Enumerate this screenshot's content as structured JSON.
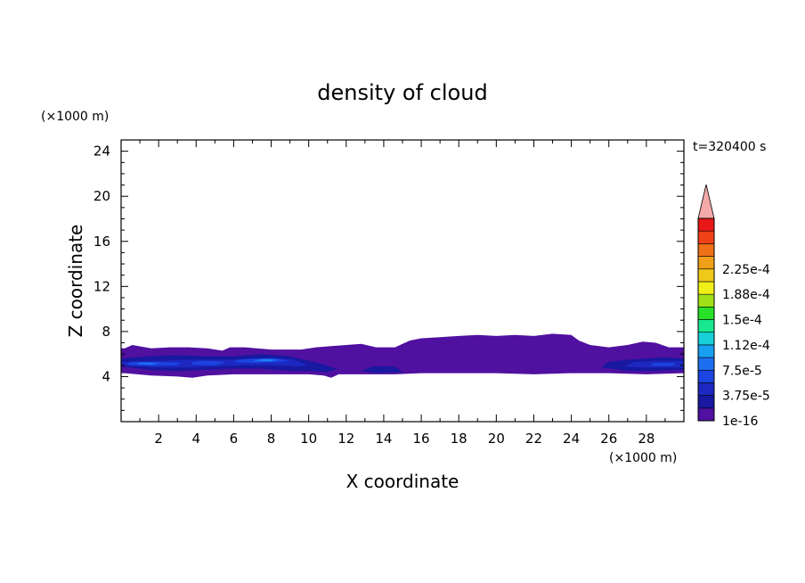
{
  "chart_data": {
    "type": "heatmap",
    "title": "density of cloud",
    "xlabel": "X coordinate",
    "ylabel": "Z coordinate",
    "x_unit": "(×1000 m)",
    "y_unit": "(×1000 m)",
    "time_label": "t=320400 s",
    "xlim": [
      0,
      30
    ],
    "ylim": [
      0,
      25
    ],
    "x_ticks": [
      2,
      4,
      6,
      8,
      10,
      12,
      14,
      16,
      18,
      20,
      22,
      24,
      26,
      28
    ],
    "y_ticks": [
      4,
      8,
      12,
      16,
      20,
      24
    ],
    "colorbar": {
      "levels": [
        "1e-16",
        "3.75e-5",
        "7.5e-5",
        "1.12e-4",
        "1.5e-4",
        "1.88e-4",
        "2.25e-4"
      ],
      "colors": [
        "#5010a0",
        "#1818a0",
        "#1c28c0",
        "#1c44e0",
        "#1c70f0",
        "#18a0f0",
        "#18d0d8",
        "#18e890",
        "#28e028",
        "#a0e018",
        "#f0f018",
        "#f0c818",
        "#f0a018",
        "#f07018",
        "#f04018",
        "#e81818"
      ],
      "extend_color": "#f4a8a8"
    },
    "regions": [
      {
        "level": 0,
        "points": [
          [
            0.2,
            4.3
          ],
          [
            1.6,
            4.1
          ],
          [
            3.0,
            4.0
          ],
          [
            3.8,
            3.9
          ],
          [
            4.6,
            4.1
          ],
          [
            6.0,
            4.2
          ],
          [
            8.0,
            4.2
          ],
          [
            10.0,
            4.2
          ],
          [
            10.8,
            4.1
          ],
          [
            11.2,
            3.9
          ],
          [
            11.6,
            4.2
          ],
          [
            13.0,
            4.2
          ],
          [
            14.6,
            4.2
          ],
          [
            16.0,
            4.3
          ],
          [
            18.0,
            4.3
          ],
          [
            20.0,
            4.3
          ],
          [
            22.0,
            4.2
          ],
          [
            24.0,
            4.3
          ],
          [
            26.0,
            4.3
          ],
          [
            28.0,
            4.2
          ],
          [
            30.0,
            4.3
          ],
          [
            30.0,
            6.6
          ],
          [
            29.2,
            6.6
          ],
          [
            28.5,
            7.0
          ],
          [
            27.8,
            7.1
          ],
          [
            27.0,
            6.8
          ],
          [
            26.0,
            6.6
          ],
          [
            25.0,
            6.8
          ],
          [
            24.4,
            7.2
          ],
          [
            24.0,
            7.7
          ],
          [
            23.0,
            7.8
          ],
          [
            22.0,
            7.6
          ],
          [
            21.0,
            7.7
          ],
          [
            20.0,
            7.6
          ],
          [
            19.0,
            7.7
          ],
          [
            18.0,
            7.6
          ],
          [
            17.0,
            7.5
          ],
          [
            16.0,
            7.4
          ],
          [
            15.4,
            7.2
          ],
          [
            15.0,
            6.9
          ],
          [
            14.6,
            6.6
          ],
          [
            13.6,
            6.6
          ],
          [
            12.8,
            6.9
          ],
          [
            12.0,
            6.8
          ],
          [
            11.2,
            6.7
          ],
          [
            10.4,
            6.6
          ],
          [
            9.6,
            6.4
          ],
          [
            8.0,
            6.4
          ],
          [
            6.6,
            6.6
          ],
          [
            5.8,
            6.6
          ],
          [
            5.4,
            6.3
          ],
          [
            4.6,
            6.5
          ],
          [
            3.6,
            6.6
          ],
          [
            2.6,
            6.6
          ],
          [
            1.6,
            6.5
          ],
          [
            0.6,
            6.8
          ],
          [
            0.2,
            6.5
          ],
          [
            0.0,
            6.5
          ],
          [
            0.0,
            4.3
          ]
        ]
      },
      {
        "level": 1,
        "points": [
          [
            0.0,
            4.9
          ],
          [
            1.5,
            4.6
          ],
          [
            3.0,
            4.5
          ],
          [
            4.5,
            4.6
          ],
          [
            6.0,
            4.7
          ],
          [
            7.5,
            4.7
          ],
          [
            9.0,
            4.5
          ],
          [
            10.0,
            4.5
          ],
          [
            11.0,
            4.4
          ],
          [
            11.5,
            4.7
          ],
          [
            10.5,
            5.2
          ],
          [
            9.0,
            5.8
          ],
          [
            7.5,
            6.0
          ],
          [
            6.0,
            5.8
          ],
          [
            4.5,
            5.8
          ],
          [
            3.0,
            5.9
          ],
          [
            1.5,
            5.8
          ],
          [
            0.0,
            5.6
          ]
        ]
      },
      {
        "level": 1,
        "points": [
          [
            12.8,
            4.5
          ],
          [
            13.6,
            4.3
          ],
          [
            15.0,
            4.4
          ],
          [
            14.6,
            4.9
          ],
          [
            13.4,
            4.9
          ]
        ]
      },
      {
        "level": 1,
        "points": [
          [
            25.6,
            4.8
          ],
          [
            27.0,
            4.5
          ],
          [
            28.5,
            4.5
          ],
          [
            30.0,
            4.6
          ],
          [
            30.0,
            5.6
          ],
          [
            29.0,
            5.7
          ],
          [
            28.0,
            5.6
          ],
          [
            27.0,
            5.5
          ],
          [
            26.0,
            5.3
          ]
        ]
      },
      {
        "level": 2,
        "points": [
          [
            0.0,
            5.0
          ],
          [
            2.0,
            4.8
          ],
          [
            3.5,
            4.8
          ],
          [
            5.0,
            4.9
          ],
          [
            6.5,
            5.0
          ],
          [
            8.0,
            5.0
          ],
          [
            9.5,
            4.9
          ],
          [
            10.0,
            5.0
          ],
          [
            9.2,
            5.5
          ],
          [
            8.0,
            5.7
          ],
          [
            6.5,
            5.5
          ],
          [
            5.0,
            5.5
          ],
          [
            3.5,
            5.5
          ],
          [
            2.0,
            5.4
          ],
          [
            0.0,
            5.3
          ]
        ]
      },
      {
        "level": 2,
        "points": [
          [
            26.8,
            4.9
          ],
          [
            28.0,
            4.8
          ],
          [
            30.0,
            4.8
          ],
          [
            30.0,
            5.4
          ],
          [
            28.5,
            5.4
          ],
          [
            27.4,
            5.3
          ]
        ]
      },
      {
        "level": 3,
        "points": [
          [
            0.3,
            5.05
          ],
          [
            1.5,
            4.95
          ],
          [
            3.0,
            5.0
          ],
          [
            3.2,
            5.25
          ],
          [
            1.8,
            5.3
          ],
          [
            0.5,
            5.3
          ]
        ]
      },
      {
        "level": 3,
        "points": [
          [
            3.8,
            5.05
          ],
          [
            5.0,
            5.0
          ],
          [
            5.6,
            5.3
          ],
          [
            4.4,
            5.4
          ],
          [
            3.8,
            5.3
          ]
        ]
      },
      {
        "level": 3,
        "points": [
          [
            6.0,
            5.3
          ],
          [
            7.0,
            5.2
          ],
          [
            8.4,
            5.3
          ],
          [
            9.0,
            5.4
          ],
          [
            8.2,
            5.6
          ],
          [
            7.0,
            5.6
          ],
          [
            6.2,
            5.5
          ]
        ]
      },
      {
        "level": 3,
        "points": [
          [
            28.2,
            4.95
          ],
          [
            29.4,
            4.95
          ],
          [
            29.6,
            5.2
          ],
          [
            28.4,
            5.2
          ]
        ]
      },
      {
        "level": 4,
        "points": [
          [
            0.8,
            5.1
          ],
          [
            1.6,
            5.05
          ],
          [
            2.0,
            5.2
          ],
          [
            1.0,
            5.25
          ]
        ]
      },
      {
        "level": 4,
        "points": [
          [
            7.0,
            5.35
          ],
          [
            8.0,
            5.35
          ],
          [
            8.4,
            5.5
          ],
          [
            7.4,
            5.55
          ]
        ]
      },
      {
        "level": 5,
        "points": [
          [
            7.5,
            5.42
          ],
          [
            8.0,
            5.42
          ],
          [
            8.1,
            5.5
          ],
          [
            7.6,
            5.52
          ]
        ]
      }
    ]
  }
}
